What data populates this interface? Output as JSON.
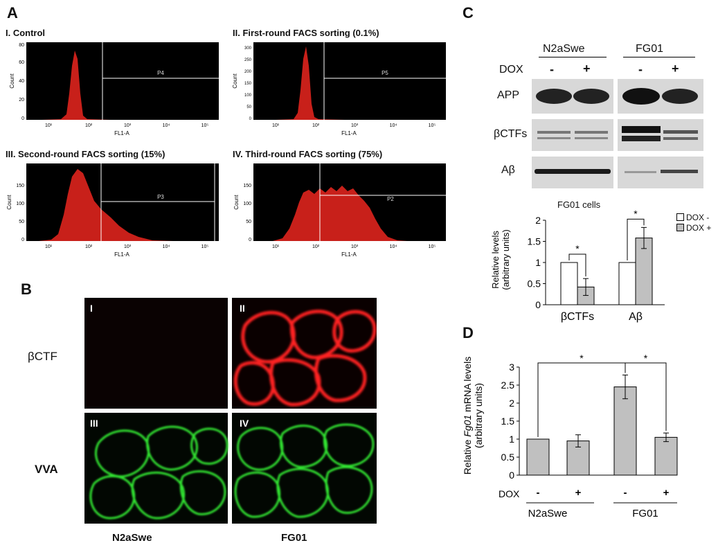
{
  "panels": {
    "A": "A",
    "B": "B",
    "C": "C",
    "D": "D"
  },
  "facs": {
    "titles": [
      "I. Control",
      "II. First-round FACS sorting (0.1%)",
      "III. Second-round FACS sorting (15%)",
      "IV. Third-round FACS sorting (75%)"
    ],
    "gates": [
      "P4",
      "P5",
      "P3",
      "P2"
    ],
    "ylabel": "Count",
    "xlabel": "FL1-A",
    "xticks": [
      "10¹",
      "10²",
      "10³",
      "10⁴",
      "10⁵"
    ],
    "yticks_p1": [
      "0",
      "20",
      "40",
      "60",
      "80"
    ],
    "yticks_p2": [
      "0",
      "50",
      "100",
      "150",
      "200",
      "250",
      "300"
    ],
    "yticks_p3": [
      "0",
      "50",
      "100",
      "150"
    ],
    "yticks_p4": [
      "0",
      "50",
      "100",
      "150"
    ]
  },
  "microscopy": {
    "row_labels": [
      "βCTF",
      "VVA"
    ],
    "col_labels": [
      "N2aSwe",
      "FG01"
    ],
    "quadrants": [
      "I",
      "II",
      "III",
      "IV"
    ],
    "colors": {
      "red": "#ff1a1a",
      "green": "#2ee62e",
      "dark": "#050505"
    }
  },
  "blot": {
    "groups": [
      "N2aSwe",
      "FG01"
    ],
    "dox_label": "DOX",
    "dox_signs": [
      "-",
      "+",
      "-",
      "+"
    ],
    "rows": [
      "APP",
      "βCTFs",
      "Aβ"
    ]
  },
  "chart_data": [
    {
      "type": "bar",
      "title": "FG01 cells",
      "ylabel": "Relative levels (arbitrary units)",
      "categories": [
        "βCTFs",
        "Aβ"
      ],
      "series": [
        {
          "name": "DOX -",
          "values": [
            1.0,
            1.0
          ],
          "errors": [
            0,
            0
          ],
          "color": "#ffffff"
        },
        {
          "name": "DOX +",
          "values": [
            0.42,
            1.58
          ],
          "errors": [
            0.2,
            0.25
          ],
          "color": "#c0c0c0"
        }
      ],
      "ylim": [
        0,
        2
      ],
      "yticks": [
        0,
        0.5,
        1,
        1.5,
        2
      ],
      "yticklabels": [
        "0",
        "0.5",
        "1",
        "1.5",
        "2"
      ],
      "significance": [
        "*",
        "*"
      ],
      "legend": "top-right"
    },
    {
      "type": "bar",
      "ylabel_pre": "Relative ",
      "ylabel_italic": "Fg01",
      "ylabel_post": " mRNA levels",
      "ylabel2": "(arbitrary units)",
      "categories": [
        "N2aSwe -",
        "N2aSwe +",
        "FG01 -",
        "FG01 +"
      ],
      "values": [
        1.0,
        0.95,
        2.45,
        1.05
      ],
      "errors": [
        0,
        0.17,
        0.33,
        0.12
      ],
      "ylim": [
        0,
        3
      ],
      "yticks": [
        0,
        0.5,
        1,
        1.5,
        2,
        2.5,
        3
      ],
      "yticklabels": [
        "0",
        "0.5",
        "1",
        "1.5",
        "2",
        "2.5",
        "3"
      ],
      "color": "#c0c0c0",
      "significance": [
        "*",
        "*"
      ],
      "dox_label": "DOX",
      "dox_signs": [
        "-",
        "+",
        "-",
        "+"
      ],
      "groups": [
        "N2aSwe",
        "FG01"
      ]
    }
  ]
}
